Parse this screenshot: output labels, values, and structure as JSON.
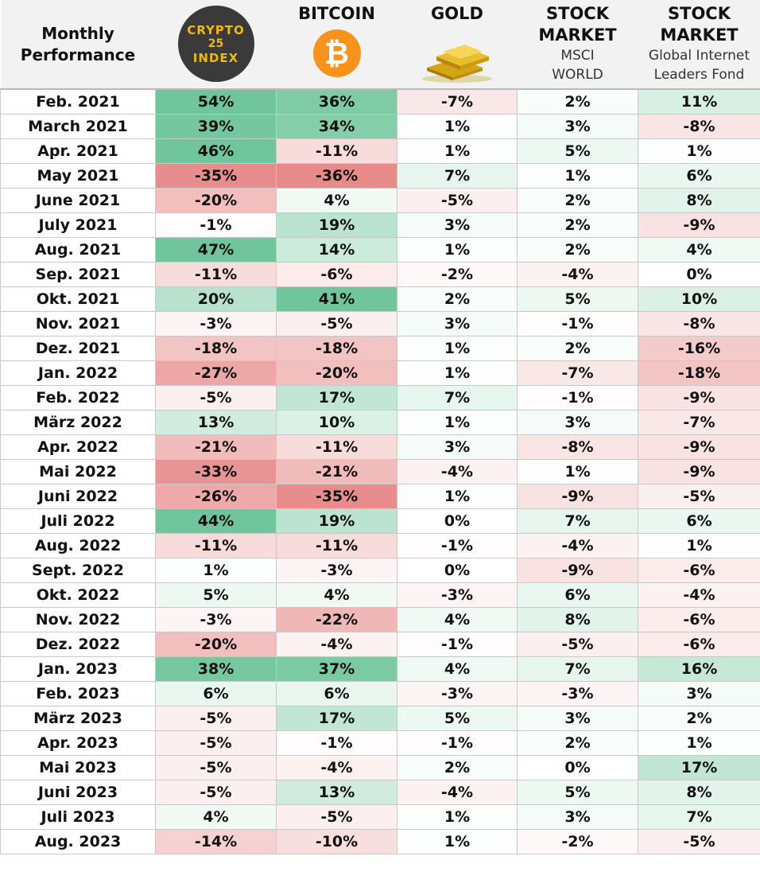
{
  "header": {
    "corner_line1": "Monthly",
    "corner_line2": "Performance",
    "crypto_logo": {
      "line1": "CRYPTO",
      "line2": "25",
      "line3": "INDEX"
    },
    "bitcoin": {
      "title": "BITCOIN",
      "icon": "bitcoin-icon"
    },
    "gold": {
      "title": "GOLD",
      "icon": "gold-bars-icon"
    },
    "msci": {
      "title1": "STOCK",
      "title2": "MARKET",
      "sub1": "MSCI",
      "sub2": "WORLD"
    },
    "internet": {
      "title1": "STOCK",
      "title2": "MARKET",
      "sub1": "Global Internet",
      "sub2": "Leaders Fond"
    }
  },
  "colors": {
    "positive": "#57bb8a",
    "negative": "#e06666",
    "neutral": "#ffffff",
    "header_bg": "#f2f2f2"
  },
  "chart_data": {
    "type": "table",
    "columns": [
      "Monthly Performance",
      "CRYPTO 25 INDEX",
      "BITCOIN",
      "GOLD",
      "STOCK MARKET MSCI WORLD",
      "STOCK MARKET Global Internet Leaders Fond"
    ],
    "rows": [
      {
        "month": "Feb. 2021",
        "values": [
          54,
          36,
          -7,
          2,
          11
        ]
      },
      {
        "month": "March 2021",
        "values": [
          39,
          34,
          1,
          3,
          -8
        ]
      },
      {
        "month": "Apr. 2021",
        "values": [
          46,
          -11,
          1,
          5,
          1
        ]
      },
      {
        "month": "May 2021",
        "values": [
          -35,
          -36,
          7,
          1,
          6
        ]
      },
      {
        "month": "June 2021",
        "values": [
          -20,
          4,
          -5,
          2,
          8
        ]
      },
      {
        "month": "July 2021",
        "values": [
          -1,
          19,
          3,
          2,
          -9
        ]
      },
      {
        "month": "Aug. 2021",
        "values": [
          47,
          14,
          1,
          2,
          4
        ]
      },
      {
        "month": "Sep. 2021",
        "values": [
          -11,
          -6,
          -2,
          -4,
          0
        ]
      },
      {
        "month": "Okt. 2021",
        "values": [
          20,
          41,
          2,
          5,
          10
        ]
      },
      {
        "month": "Nov. 2021",
        "values": [
          -3,
          -5,
          3,
          -1,
          -8
        ]
      },
      {
        "month": "Dez. 2021",
        "values": [
          -18,
          -18,
          1,
          2,
          -16
        ]
      },
      {
        "month": "Jan. 2022",
        "values": [
          -27,
          -20,
          1,
          -7,
          -18
        ]
      },
      {
        "month": "Feb. 2022",
        "values": [
          -5,
          17,
          7,
          -1,
          -9
        ]
      },
      {
        "month": "März 2022",
        "values": [
          13,
          10,
          1,
          3,
          -7
        ]
      },
      {
        "month": "Apr. 2022",
        "values": [
          -21,
          -11,
          3,
          -8,
          -9
        ]
      },
      {
        "month": "Mai 2022",
        "values": [
          -33,
          -21,
          -4,
          1,
          -9
        ]
      },
      {
        "month": "Juni 2022",
        "values": [
          -26,
          -35,
          1,
          -9,
          -5
        ]
      },
      {
        "month": "Juli 2022",
        "values": [
          44,
          19,
          0,
          7,
          6
        ]
      },
      {
        "month": "Aug. 2022",
        "values": [
          -11,
          -11,
          -1,
          -4,
          1
        ]
      },
      {
        "month": "Sept. 2022",
        "values": [
          1,
          -3,
          0,
          -9,
          -6
        ]
      },
      {
        "month": "Okt. 2022",
        "values": [
          5,
          4,
          -3,
          6,
          -4
        ]
      },
      {
        "month": "Nov. 2022",
        "values": [
          -3,
          -22,
          4,
          8,
          -6
        ]
      },
      {
        "month": "Dez. 2022",
        "values": [
          -20,
          -4,
          -1,
          -5,
          -6
        ]
      },
      {
        "month": "Jan. 2023",
        "values": [
          38,
          37,
          4,
          7,
          16
        ]
      },
      {
        "month": "Feb. 2023",
        "values": [
          6,
          6,
          -3,
          -3,
          3
        ]
      },
      {
        "month": "März 2023",
        "values": [
          -5,
          17,
          5,
          3,
          2
        ]
      },
      {
        "month": "Apr. 2023",
        "values": [
          -5,
          -1,
          -1,
          2,
          1
        ]
      },
      {
        "month": "Mai 2023",
        "values": [
          -5,
          -4,
          2,
          0,
          17
        ]
      },
      {
        "month": "Juni 2023",
        "values": [
          -5,
          13,
          -4,
          5,
          8
        ]
      },
      {
        "month": "Juli 2023",
        "values": [
          4,
          -5,
          1,
          3,
          7
        ]
      },
      {
        "month": "Aug. 2023",
        "values": [
          -14,
          -10,
          1,
          -2,
          -5
        ]
      }
    ]
  }
}
